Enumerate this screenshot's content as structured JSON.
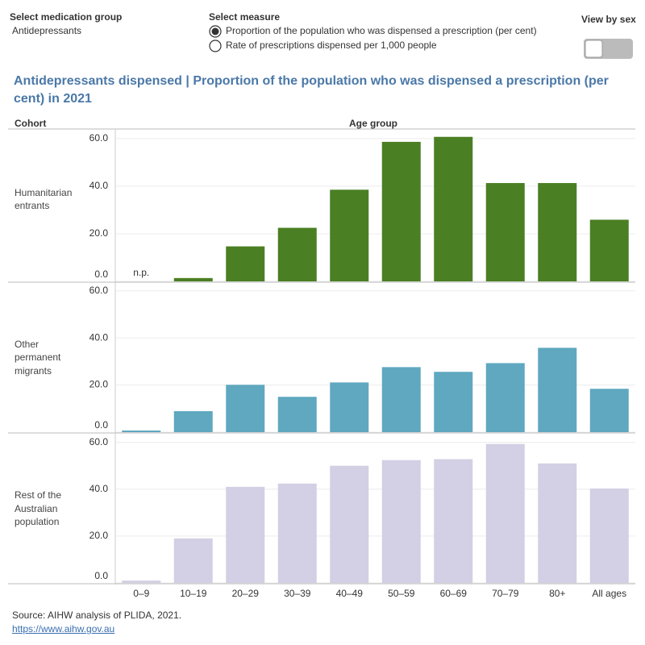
{
  "controls": {
    "medication_group": {
      "label": "Select medication group",
      "value": "Antidepressants"
    },
    "measure": {
      "label": "Select measure",
      "options": [
        "Proportion of the population who was dispensed a prescription (per cent)",
        "Rate of prescriptions dispensed per 1,000 people"
      ],
      "selected": 0
    },
    "view_by_sex": {
      "label": "View by sex",
      "on": false
    }
  },
  "title": "Antidepressants dispensed | Proportion of the population who was dispensed a prescription (per cent) in 2021",
  "row_header": "Cohort",
  "column_header": "Age group",
  "chart_data": [
    {
      "type": "bar",
      "title": "Humanitarian entrants",
      "color": "#4a7f23",
      "values": [
        null,
        1.4,
        14.7,
        22.5,
        38.5,
        58.6,
        60.7,
        41.3,
        41.3,
        25.9
      ],
      "value_labels": [
        "n.p.",
        null,
        null,
        null,
        null,
        null,
        null,
        null,
        null,
        null
      ],
      "ylim": [
        0,
        64
      ],
      "yticks": [
        {
          "value": 0,
          "label": "0.0"
        },
        {
          "value": 20,
          "label": "20.0"
        },
        {
          "value": 40,
          "label": "40.0"
        },
        {
          "value": 60,
          "label": "60.0"
        }
      ],
      "grid": true
    },
    {
      "type": "bar",
      "title": "Other permanent migrants",
      "color": "#5fa8bf",
      "values": [
        0.7,
        8.9,
        20.1,
        15.0,
        21.1,
        27.6,
        25.6,
        29.3,
        35.8,
        18.4
      ],
      "ylim": [
        0,
        64
      ],
      "yticks": [
        {
          "value": 0,
          "label": "0.0"
        },
        {
          "value": 20,
          "label": "20.0"
        },
        {
          "value": 40,
          "label": "40.0"
        },
        {
          "value": 60,
          "label": "60.0"
        }
      ],
      "grid": true
    },
    {
      "type": "bar",
      "title": "Rest of the Australian population",
      "color": "#d3cfe4",
      "categories": [
        "0–9",
        "10–19",
        "20–29",
        "30–39",
        "40–49",
        "50–59",
        "60–69",
        "70–79",
        "80+",
        "All ages"
      ],
      "values": [
        1.0,
        19.0,
        41.0,
        42.4,
        50.0,
        52.4,
        52.8,
        59.3,
        51.0,
        40.3
      ],
      "ylim": [
        0,
        64
      ],
      "yticks": [
        {
          "value": 0,
          "label": "0.0"
        },
        {
          "value": 20,
          "label": "20.0"
        },
        {
          "value": 40,
          "label": "40.0"
        },
        {
          "value": 60,
          "label": "60.0"
        }
      ],
      "grid": true
    }
  ],
  "source": "Source: AIHW analysis of PLIDA, 2021.",
  "link": "https://www.aihw.gov.au"
}
